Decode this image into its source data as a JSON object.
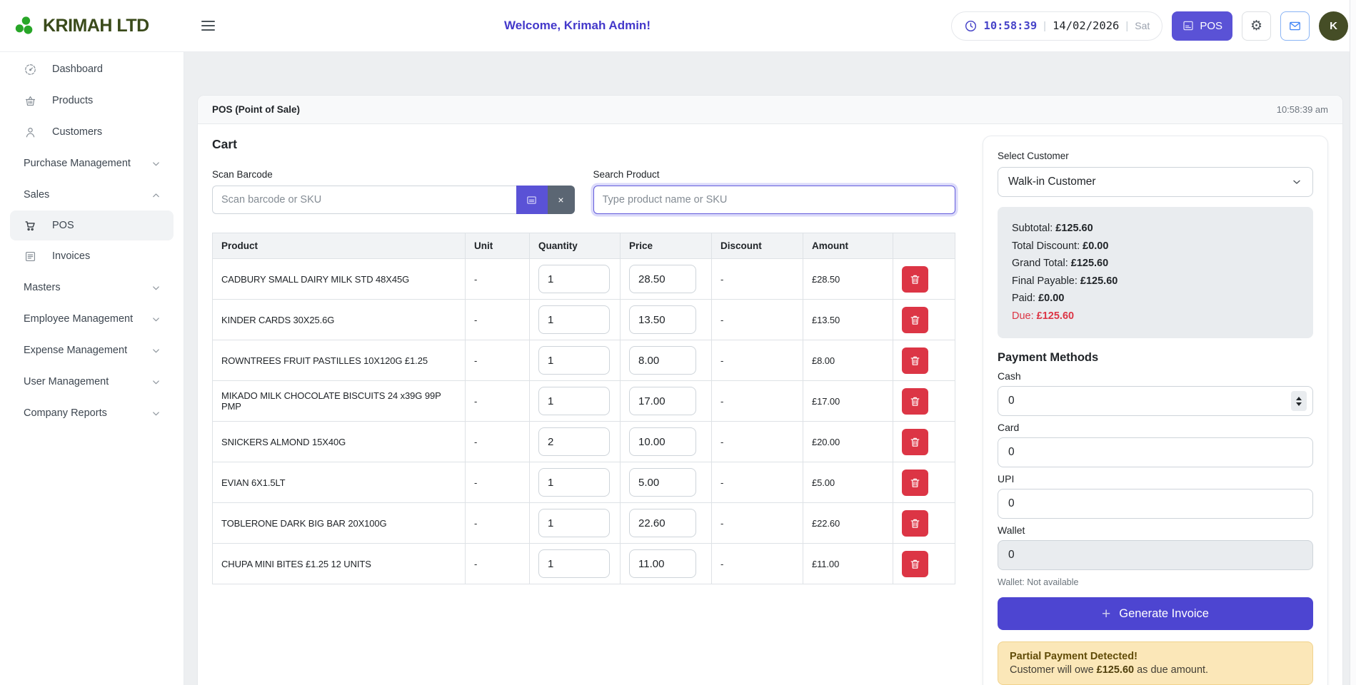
{
  "header": {
    "brand": "KRIMAH LTD",
    "welcome": "Welcome, Krimah Admin!",
    "time": "10:58:39",
    "sep": "|",
    "date": "14/02/2026",
    "day": "Sat",
    "pos_button_label": "POS",
    "gear_glyph": "⚙",
    "avatar_initial": "K"
  },
  "sidebar": {
    "items": [
      {
        "label": "Dashboard",
        "icon": "dashboard",
        "kind": "link"
      },
      {
        "label": "Products",
        "icon": "products",
        "kind": "link"
      },
      {
        "label": "Customers",
        "icon": "customers",
        "kind": "link"
      },
      {
        "label": "Purchase Management",
        "kind": "group",
        "chevron": "down"
      },
      {
        "label": "Sales",
        "kind": "group",
        "chevron": "up"
      },
      {
        "label": "POS",
        "icon": "pos",
        "kind": "link",
        "active": true
      },
      {
        "label": "Invoices",
        "icon": "invoices",
        "kind": "link"
      },
      {
        "label": "Masters",
        "kind": "group",
        "chevron": "down"
      },
      {
        "label": "Employee Management",
        "kind": "group",
        "chevron": "down"
      },
      {
        "label": "Expense Management",
        "kind": "group",
        "chevron": "down"
      },
      {
        "label": "User Management",
        "kind": "group",
        "chevron": "down"
      },
      {
        "label": "Company Reports",
        "kind": "group",
        "chevron": "down"
      }
    ]
  },
  "main": {
    "panel_title": "POS (Point of Sale)",
    "panel_time": "10:58:39 am",
    "cart_title": "Cart",
    "scan_label": "Scan Barcode",
    "scan_placeholder": "Scan barcode or SKU",
    "clear_button_label": "×",
    "search_label": "Search Product",
    "search_placeholder": "Type product name or SKU",
    "table": {
      "headers": [
        "Product",
        "Unit",
        "Quantity",
        "Price",
        "Discount",
        "Amount",
        ""
      ],
      "rows": [
        {
          "product": "CADBURY SMALL DAIRY MILK STD 48X45G",
          "unit": "-",
          "quantity": "1",
          "price": "28.50",
          "discount": "-",
          "amount": "£28.50"
        },
        {
          "product": "KINDER CARDS 30X25.6G",
          "unit": "-",
          "quantity": "1",
          "price": "13.50",
          "discount": "-",
          "amount": "£13.50"
        },
        {
          "product": "ROWNTREES FRUIT PASTILLES 10X120G £1.25",
          "unit": "-",
          "quantity": "1",
          "price": "8.00",
          "discount": "-",
          "amount": "£8.00"
        },
        {
          "product": "MIKADO MILK CHOCOLATE BISCUITS 24 x39G 99P PMP",
          "unit": "-",
          "quantity": "1",
          "price": "17.00",
          "discount": "-",
          "amount": "£17.00"
        },
        {
          "product": "SNICKERS ALMOND 15X40G",
          "unit": "-",
          "quantity": "2",
          "price": "10.00",
          "discount": "-",
          "amount": "£20.00"
        },
        {
          "product": "EVIAN 6X1.5LT",
          "unit": "-",
          "quantity": "1",
          "price": "5.00",
          "discount": "-",
          "amount": "£5.00"
        },
        {
          "product": "TOBLERONE DARK BIG BAR 20X100G",
          "unit": "-",
          "quantity": "1",
          "price": "22.60",
          "discount": "-",
          "amount": "£22.60"
        },
        {
          "product": "CHUPA MINI BITES £1.25 12 UNITS",
          "unit": "-",
          "quantity": "1",
          "price": "11.00",
          "discount": "-",
          "amount": "£11.00"
        }
      ]
    }
  },
  "checkout": {
    "select_customer_label": "Select Customer",
    "customer_value": "Walk-in Customer",
    "totals": [
      {
        "label": "Subtotal:",
        "value": "£125.60"
      },
      {
        "label": "Total Discount:",
        "value": "£0.00"
      },
      {
        "label": "Grand Total:",
        "value": "£125.60"
      },
      {
        "label": "Final Payable:",
        "value": "£125.60"
      },
      {
        "label": "Paid:",
        "value": "£0.00"
      },
      {
        "label": "Due:",
        "value": "£125.60",
        "due": true
      }
    ],
    "payment_title": "Payment Methods",
    "methods": [
      {
        "label": "Cash",
        "value": "0",
        "spinner": true
      },
      {
        "label": "Card",
        "value": "0"
      },
      {
        "label": "UPI",
        "value": "0"
      },
      {
        "label": "Wallet",
        "value": "0",
        "disabled": true
      }
    ],
    "wallet_note": "Wallet: Not available",
    "generate_invoice_icon": "+",
    "generate_invoice_label": "Generate Invoice",
    "warning": {
      "title": "Partial Payment Detected!",
      "text_before": "Customer will owe ",
      "amount": "£125.60",
      "text_after": " as due amount."
    }
  },
  "colors": {
    "accent": "#4d45d1",
    "danger": "#dc3545",
    "brand_green": "#28a628",
    "warning_bg": "#fbe7b8"
  }
}
